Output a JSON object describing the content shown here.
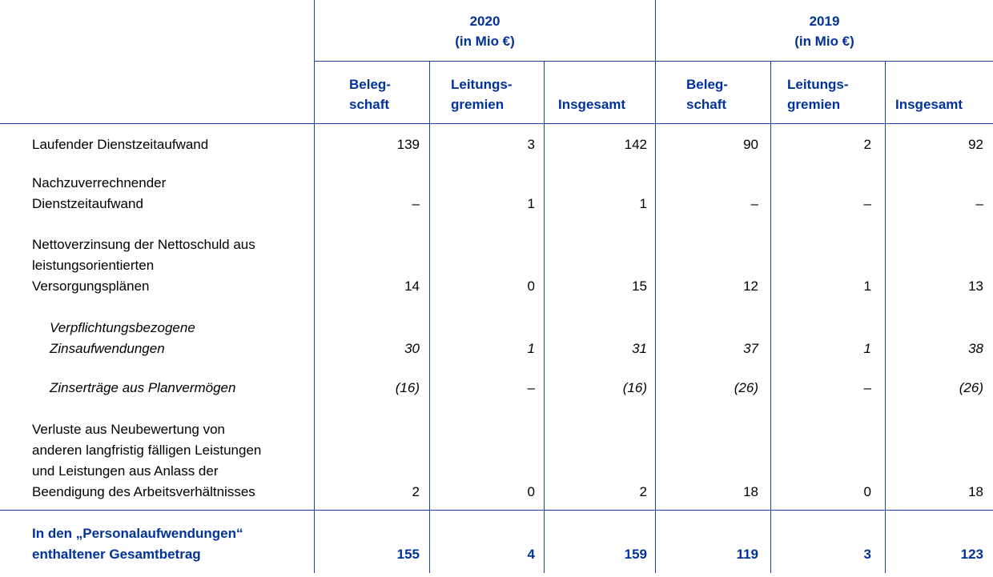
{
  "header": {
    "year2020": "2020",
    "unit2020": "(in Mio €)",
    "year2019": "2019",
    "unit2019": "(in Mio €)",
    "cols": [
      {
        "l1": "Beleg-",
        "l2": "schaft"
      },
      {
        "l1": "Leitungs-",
        "l2": "gremien"
      },
      {
        "l1": "",
        "l2": "Insgesamt"
      },
      {
        "l1": "Beleg-",
        "l2": "schaft"
      },
      {
        "l1": "Leitungs-",
        "l2": "gremien"
      },
      {
        "l1": "",
        "l2": "Insgesamt"
      }
    ]
  },
  "rows": [
    {
      "lines": [
        "Laufender Dienstzeitaufwand"
      ],
      "values": [
        "139",
        "3",
        "142",
        "90",
        "2",
        "92"
      ]
    },
    {
      "lines": [
        "Nachzuverrechnender",
        "Dienstzeitaufwand"
      ],
      "values": [
        "–",
        "1",
        "1",
        "–",
        "–",
        "–"
      ]
    },
    {
      "lines": [
        "Nettoverzinsung der Nettoschuld aus",
        "leistungsorientierten",
        "Versorgungsplänen"
      ],
      "values": [
        "14",
        "0",
        "15",
        "12",
        "1",
        "13"
      ]
    },
    {
      "lines": [
        "Verpflichtungsbezogene",
        "Zinsaufwendungen"
      ],
      "values": [
        "30",
        "1",
        "31",
        "37",
        "1",
        "38"
      ]
    },
    {
      "lines": [
        "Zinserträge aus Planvermögen"
      ],
      "values": [
        "(16)",
        "–",
        "(16)",
        "(26)",
        "–",
        "(26)"
      ]
    },
    {
      "lines": [
        "Verluste aus Neubewertung von",
        "anderen langfristig fälligen Leistungen",
        "und Leistungen aus Anlass der",
        "Beendigung des Arbeitsverhältnisses"
      ],
      "values": [
        "2",
        "0",
        "2",
        "18",
        "0",
        "18"
      ]
    }
  ],
  "total": {
    "lines": [
      "In den „Personalaufwendungen“",
      "enthaltener Gesamtbetrag"
    ],
    "values": [
      "155",
      "4",
      "159",
      "119",
      "3",
      "123"
    ]
  }
}
